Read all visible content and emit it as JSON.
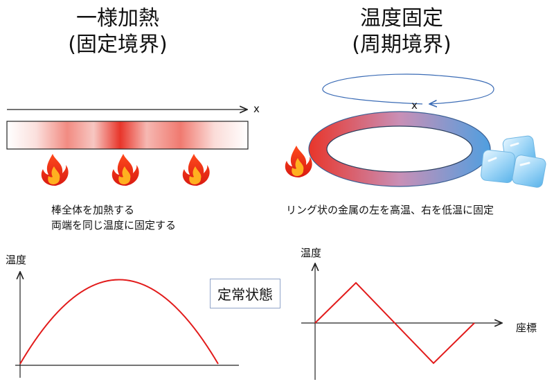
{
  "left": {
    "title_line1": "一様加熱",
    "title_line2": "(固定境界)",
    "axis_x_label": "x",
    "description_line1": "棒全体を加熱する",
    "description_line2": "両端を同じ温度に固定する",
    "graph_ylabel": "温度"
  },
  "right": {
    "title_line1": "温度固定",
    "title_line2": "(周期境界)",
    "axis_x_label": "x",
    "description": "リング状の金属の左を高温、右を低温に固定",
    "graph_ylabel": "温度",
    "graph_xlabel": "座標"
  },
  "center_label": "定常状態",
  "colors": {
    "hot": "#e8352a",
    "cold": "#4f9fe0",
    "curve": "#e21b1b",
    "axis": "#222222",
    "box_border": "#8fa3c8"
  },
  "icons": [
    "flame-icon",
    "flame-icon",
    "flame-icon",
    "flame-icon",
    "ice-cubes-icon"
  ]
}
